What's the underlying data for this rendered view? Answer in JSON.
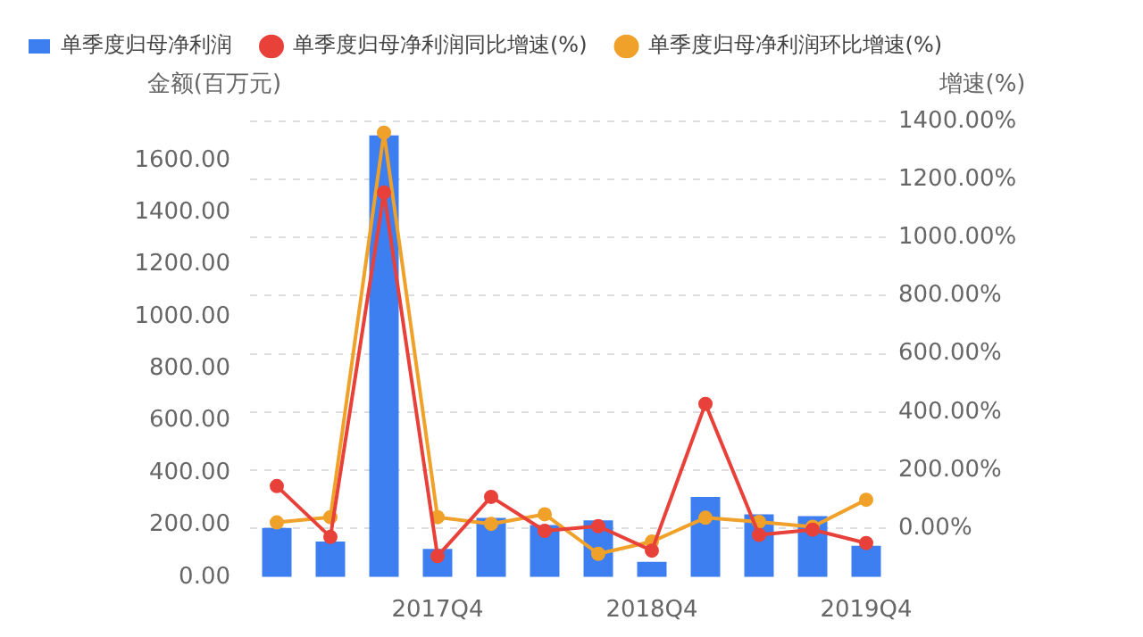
{
  "chart_data": {
    "type": "bar",
    "ylabel": "金额(百万元)",
    "y2label": "增速(%)",
    "categories": [
      null,
      null,
      null,
      "2017Q4",
      null,
      null,
      null,
      "2018Q4",
      null,
      null,
      null,
      "2019Q4"
    ],
    "series": [
      {
        "name": "单季度归母净利润",
        "color": "#3d7ef0",
        "values": [
          189,
          136,
          1696,
          108,
          227,
          200,
          218,
          58,
          308,
          241,
          234,
          120
        ]
      },
      {
        "name": "单季度归母净利润同比增速(%)",
        "type": "line",
        "axis": "y2",
        "color": "#e8413a",
        "values": [
          145,
          -30,
          1155,
          -96,
          108,
          -9,
          7,
          -77,
          428,
          -23,
          -5,
          -51
        ]
      },
      {
        "name": "单季度归母净利润环比增速(%)",
        "type": "line",
        "axis": "y2",
        "color": "#f0a12a",
        "values": [
          20,
          38,
          1361,
          38,
          15,
          48,
          -88,
          -46,
          36,
          22,
          5,
          98
        ]
      }
    ],
    "ylim": [
      0,
      1750
    ],
    "yticks": [
      {
        "value": 0,
        "label": "0.00"
      },
      {
        "value": 200,
        "label": "200.00"
      },
      {
        "value": 400,
        "label": "400.00"
      },
      {
        "value": 600,
        "label": "600.00"
      },
      {
        "value": 800,
        "label": "800.00"
      },
      {
        "value": 1000,
        "label": "1000.00"
      },
      {
        "value": 1200,
        "label": "1200.00"
      },
      {
        "value": 1400,
        "label": "1400.00"
      },
      {
        "value": 1600,
        "label": "1600.00"
      }
    ],
    "y2lim": [
      -168,
      1400
    ],
    "y2ticks": [
      {
        "value": 0,
        "label": "0.00%"
      },
      {
        "value": 200,
        "label": "200.00%"
      },
      {
        "value": 400,
        "label": "400.00%"
      },
      {
        "value": 600,
        "label": "600.00%"
      },
      {
        "value": 800,
        "label": "800.00%"
      },
      {
        "value": 1000,
        "label": "1000.00%"
      },
      {
        "value": 1200,
        "label": "1200.00%"
      },
      {
        "value": 1400,
        "label": "1400.00%"
      }
    ],
    "grid": true,
    "legend": "top",
    "marker": "circle",
    "line_style": "solid"
  }
}
